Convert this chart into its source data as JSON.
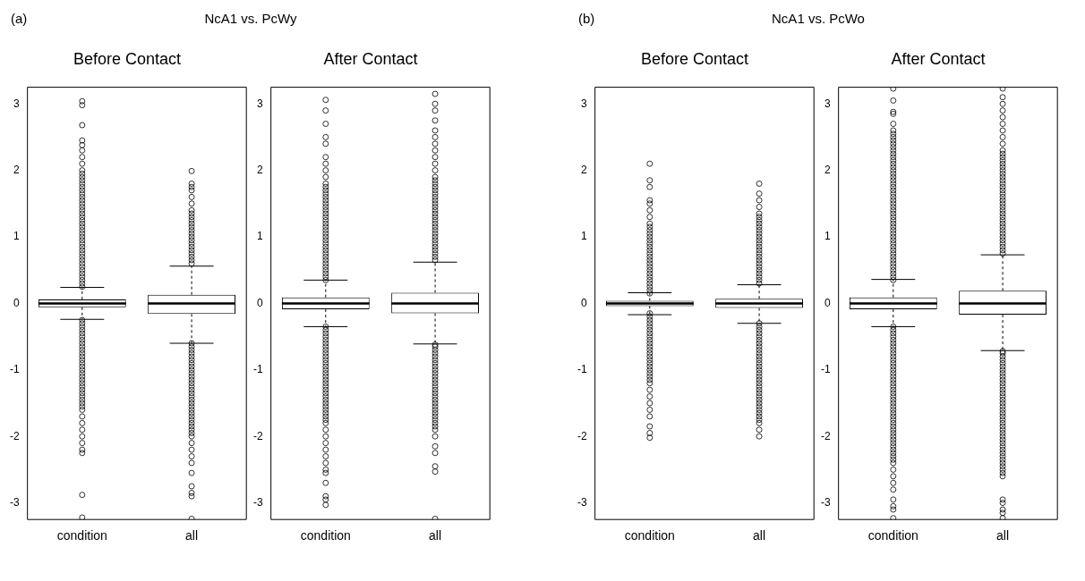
{
  "chart_data": [
    {
      "type": "box",
      "title": "Before Contact",
      "annotations": [
        "(a)",
        "NcA1 vs. PcWy"
      ],
      "categories": [
        "condition",
        "all"
      ],
      "ylim": [
        -3.25,
        3.25
      ],
      "yticks": [
        -3,
        -2,
        -1,
        0,
        1,
        2,
        3
      ],
      "boxes": [
        {
          "low": -0.24,
          "q1": -0.06,
          "median": 0,
          "q3": 0.06,
          "high": 0.24,
          "outliers": [
            0.25,
            0.3,
            0.35,
            0.4,
            0.45,
            0.5,
            0.55,
            0.6,
            0.65,
            0.7,
            0.75,
            0.8,
            0.85,
            0.9,
            0.95,
            1.0,
            1.05,
            1.1,
            1.15,
            1.2,
            1.25,
            1.3,
            1.35,
            1.4,
            1.45,
            1.5,
            1.55,
            1.6,
            1.65,
            1.7,
            1.75,
            1.8,
            1.85,
            1.9,
            1.95,
            2.0,
            2.1,
            2.2,
            2.3,
            2.38,
            2.45,
            2.68,
            2.98,
            3.04,
            -0.25,
            -0.3,
            -0.35,
            -0.4,
            -0.45,
            -0.5,
            -0.55,
            -0.6,
            -0.65,
            -0.7,
            -0.75,
            -0.8,
            -0.85,
            -0.9,
            -0.95,
            -1.0,
            -1.05,
            -1.1,
            -1.15,
            -1.2,
            -1.25,
            -1.3,
            -1.35,
            -1.4,
            -1.45,
            -1.5,
            -1.55,
            -1.6,
            -1.7,
            -1.8,
            -1.9,
            -2.0,
            -2.1,
            -2.2,
            -2.25,
            -2.88,
            -3.22
          ]
        },
        {
          "low": -0.6,
          "q1": -0.16,
          "median": 0,
          "q3": 0.13,
          "high": 0.56,
          "outliers": [
            0.6,
            0.65,
            0.7,
            0.75,
            0.8,
            0.85,
            0.9,
            0.95,
            1.0,
            1.05,
            1.1,
            1.15,
            1.2,
            1.25,
            1.3,
            1.35,
            1.4,
            1.5,
            1.6,
            1.7,
            1.75,
            1.8,
            1.99,
            -0.6,
            -0.65,
            -0.7,
            -0.75,
            -0.8,
            -0.85,
            -0.9,
            -0.95,
            -1.0,
            -1.05,
            -1.1,
            -1.15,
            -1.2,
            -1.25,
            -1.3,
            -1.35,
            -1.4,
            -1.45,
            -1.5,
            -1.55,
            -1.6,
            -1.65,
            -1.7,
            -1.75,
            -1.8,
            -1.85,
            -1.9,
            -1.95,
            -2.0,
            -2.1,
            -2.2,
            -2.3,
            -2.4,
            -2.55,
            -2.75,
            -2.85,
            -2.9,
            -3.24
          ]
        }
      ]
    },
    {
      "type": "box",
      "title": "After Contact",
      "categories": [
        "condition",
        "all"
      ],
      "ylim": [
        -3.25,
        3.25
      ],
      "yticks": [
        -3,
        -2,
        -1,
        0,
        1,
        2,
        3
      ],
      "boxes": [
        {
          "low": -0.35,
          "q1": -0.09,
          "median": 0,
          "q3": 0.09,
          "high": 0.35,
          "outliers": [
            0.35,
            0.4,
            0.45,
            0.5,
            0.55,
            0.6,
            0.65,
            0.7,
            0.75,
            0.8,
            0.85,
            0.9,
            0.95,
            1.0,
            1.05,
            1.1,
            1.15,
            1.2,
            1.25,
            1.3,
            1.35,
            1.4,
            1.45,
            1.5,
            1.55,
            1.6,
            1.65,
            1.7,
            1.75,
            1.8,
            1.9,
            2.0,
            2.1,
            2.2,
            2.4,
            2.5,
            2.7,
            2.9,
            3.06,
            -0.35,
            -0.4,
            -0.45,
            -0.5,
            -0.55,
            -0.6,
            -0.65,
            -0.7,
            -0.75,
            -0.8,
            -0.85,
            -0.9,
            -0.95,
            -1.0,
            -1.05,
            -1.1,
            -1.15,
            -1.2,
            -1.25,
            -1.3,
            -1.35,
            -1.4,
            -1.45,
            -1.5,
            -1.55,
            -1.6,
            -1.65,
            -1.7,
            -1.75,
            -1.8,
            -1.9,
            -2.0,
            -2.1,
            -2.2,
            -2.3,
            -2.4,
            -2.5,
            -2.55,
            -2.7,
            -2.9,
            -2.95,
            -3.03
          ]
        },
        {
          "low": -0.61,
          "q1": -0.15,
          "median": 0,
          "q3": 0.16,
          "high": 0.62,
          "outliers": [
            0.65,
            0.7,
            0.75,
            0.8,
            0.85,
            0.9,
            0.95,
            1.0,
            1.05,
            1.1,
            1.15,
            1.2,
            1.25,
            1.3,
            1.35,
            1.4,
            1.45,
            1.5,
            1.55,
            1.6,
            1.65,
            1.7,
            1.75,
            1.8,
            1.85,
            1.9,
            2.0,
            2.1,
            2.2,
            2.3,
            2.4,
            2.5,
            2.6,
            2.75,
            2.9,
            3.0,
            3.15,
            -0.62,
            -0.65,
            -0.7,
            -0.75,
            -0.8,
            -0.85,
            -0.9,
            -0.95,
            -1.0,
            -1.05,
            -1.1,
            -1.15,
            -1.2,
            -1.25,
            -1.3,
            -1.35,
            -1.4,
            -1.45,
            -1.5,
            -1.55,
            -1.6,
            -1.65,
            -1.7,
            -1.75,
            -1.8,
            -1.85,
            -1.9,
            -2.0,
            -2.15,
            -2.25,
            -2.45,
            -2.53,
            -3.24
          ]
        }
      ]
    },
    {
      "type": "box",
      "title": "Before Contact",
      "annotations": [
        "(b)",
        "NcA1 vs. PcWo"
      ],
      "categories": [
        "condition",
        "all"
      ],
      "ylim": [
        -3.25,
        3.25
      ],
      "yticks": [
        -3,
        -2,
        -1,
        0,
        1,
        2,
        3
      ],
      "boxes": [
        {
          "low": -0.17,
          "q1": -0.04,
          "median": 0,
          "q3": 0.04,
          "high": 0.16,
          "outliers": [
            0.15,
            0.2,
            0.25,
            0.3,
            0.35,
            0.4,
            0.45,
            0.5,
            0.55,
            0.6,
            0.65,
            0.7,
            0.75,
            0.8,
            0.85,
            0.9,
            0.95,
            1.0,
            1.05,
            1.1,
            1.15,
            1.2,
            1.3,
            1.4,
            1.5,
            1.55,
            1.75,
            1.85,
            2.1,
            -0.15,
            -0.2,
            -0.25,
            -0.3,
            -0.35,
            -0.4,
            -0.45,
            -0.5,
            -0.55,
            -0.6,
            -0.65,
            -0.7,
            -0.75,
            -0.8,
            -0.85,
            -0.9,
            -0.95,
            -1.0,
            -1.05,
            -1.1,
            -1.15,
            -1.2,
            -1.3,
            -1.4,
            -1.5,
            -1.6,
            -1.7,
            -1.85,
            -1.95,
            -2.02
          ]
        },
        {
          "low": -0.3,
          "q1": -0.07,
          "median": 0,
          "q3": 0.07,
          "high": 0.28,
          "outliers": [
            0.3,
            0.35,
            0.4,
            0.45,
            0.5,
            0.55,
            0.6,
            0.65,
            0.7,
            0.75,
            0.8,
            0.85,
            0.9,
            0.95,
            1.0,
            1.05,
            1.1,
            1.15,
            1.2,
            1.25,
            1.3,
            1.35,
            1.45,
            1.55,
            1.65,
            1.8,
            -0.3,
            -0.35,
            -0.4,
            -0.45,
            -0.5,
            -0.55,
            -0.6,
            -0.65,
            -0.7,
            -0.75,
            -0.8,
            -0.85,
            -0.9,
            -0.95,
            -1.0,
            -1.05,
            -1.1,
            -1.15,
            -1.2,
            -1.25,
            -1.3,
            -1.35,
            -1.4,
            -1.45,
            -1.5,
            -1.55,
            -1.6,
            -1.65,
            -1.7,
            -1.75,
            -1.8,
            -1.9,
            -2.0
          ]
        }
      ]
    },
    {
      "type": "box",
      "title": "After Contact",
      "categories": [
        "condition",
        "all"
      ],
      "ylim": [
        -3.25,
        3.25
      ],
      "yticks": [
        -3,
        -2,
        -1,
        0,
        1,
        2,
        3
      ],
      "boxes": [
        {
          "low": -0.35,
          "q1": -0.09,
          "median": 0,
          "q3": 0.09,
          "high": 0.36,
          "outliers": [
            0.35,
            0.4,
            0.45,
            0.5,
            0.55,
            0.6,
            0.65,
            0.7,
            0.75,
            0.8,
            0.85,
            0.9,
            0.95,
            1.0,
            1.05,
            1.1,
            1.15,
            1.2,
            1.25,
            1.3,
            1.35,
            1.4,
            1.45,
            1.5,
            1.55,
            1.6,
            1.65,
            1.7,
            1.75,
            1.8,
            1.85,
            1.9,
            1.95,
            2.0,
            2.05,
            2.1,
            2.15,
            2.2,
            2.25,
            2.3,
            2.35,
            2.4,
            2.45,
            2.5,
            2.55,
            2.6,
            2.7,
            2.85,
            2.88,
            3.05,
            3.23,
            -0.35,
            -0.4,
            -0.45,
            -0.5,
            -0.55,
            -0.6,
            -0.65,
            -0.7,
            -0.75,
            -0.8,
            -0.85,
            -0.9,
            -0.95,
            -1.0,
            -1.05,
            -1.1,
            -1.15,
            -1.2,
            -1.25,
            -1.3,
            -1.35,
            -1.4,
            -1.45,
            -1.5,
            -1.55,
            -1.6,
            -1.65,
            -1.7,
            -1.75,
            -1.8,
            -1.85,
            -1.9,
            -1.95,
            -2.0,
            -2.05,
            -2.1,
            -2.15,
            -2.2,
            -2.25,
            -2.3,
            -2.35,
            -2.4,
            -2.5,
            -2.6,
            -2.7,
            -2.8,
            -2.95,
            -3.05,
            -3.1,
            -3.23
          ]
        },
        {
          "low": -0.71,
          "q1": -0.17,
          "median": 0,
          "q3": 0.19,
          "high": 0.73,
          "outliers": [
            0.75,
            0.8,
            0.85,
            0.9,
            0.95,
            1.0,
            1.05,
            1.1,
            1.15,
            1.2,
            1.25,
            1.3,
            1.35,
            1.4,
            1.45,
            1.5,
            1.55,
            1.6,
            1.65,
            1.7,
            1.75,
            1.8,
            1.85,
            1.9,
            1.95,
            2.0,
            2.05,
            2.1,
            2.15,
            2.2,
            2.25,
            2.3,
            2.4,
            2.5,
            2.6,
            2.7,
            2.8,
            2.9,
            3.0,
            3.1,
            3.23,
            -0.72,
            -0.75,
            -0.8,
            -0.85,
            -0.9,
            -0.95,
            -1.0,
            -1.05,
            -1.1,
            -1.15,
            -1.2,
            -1.25,
            -1.3,
            -1.35,
            -1.4,
            -1.45,
            -1.5,
            -1.55,
            -1.6,
            -1.65,
            -1.7,
            -1.75,
            -1.8,
            -1.85,
            -1.9,
            -1.95,
            -2.0,
            -2.05,
            -2.1,
            -2.15,
            -2.2,
            -2.25,
            -2.3,
            -2.35,
            -2.4,
            -2.45,
            -2.5,
            -2.55,
            -2.6,
            -2.95,
            -3.0,
            -3.1,
            -3.15,
            -3.23
          ]
        }
      ]
    }
  ]
}
